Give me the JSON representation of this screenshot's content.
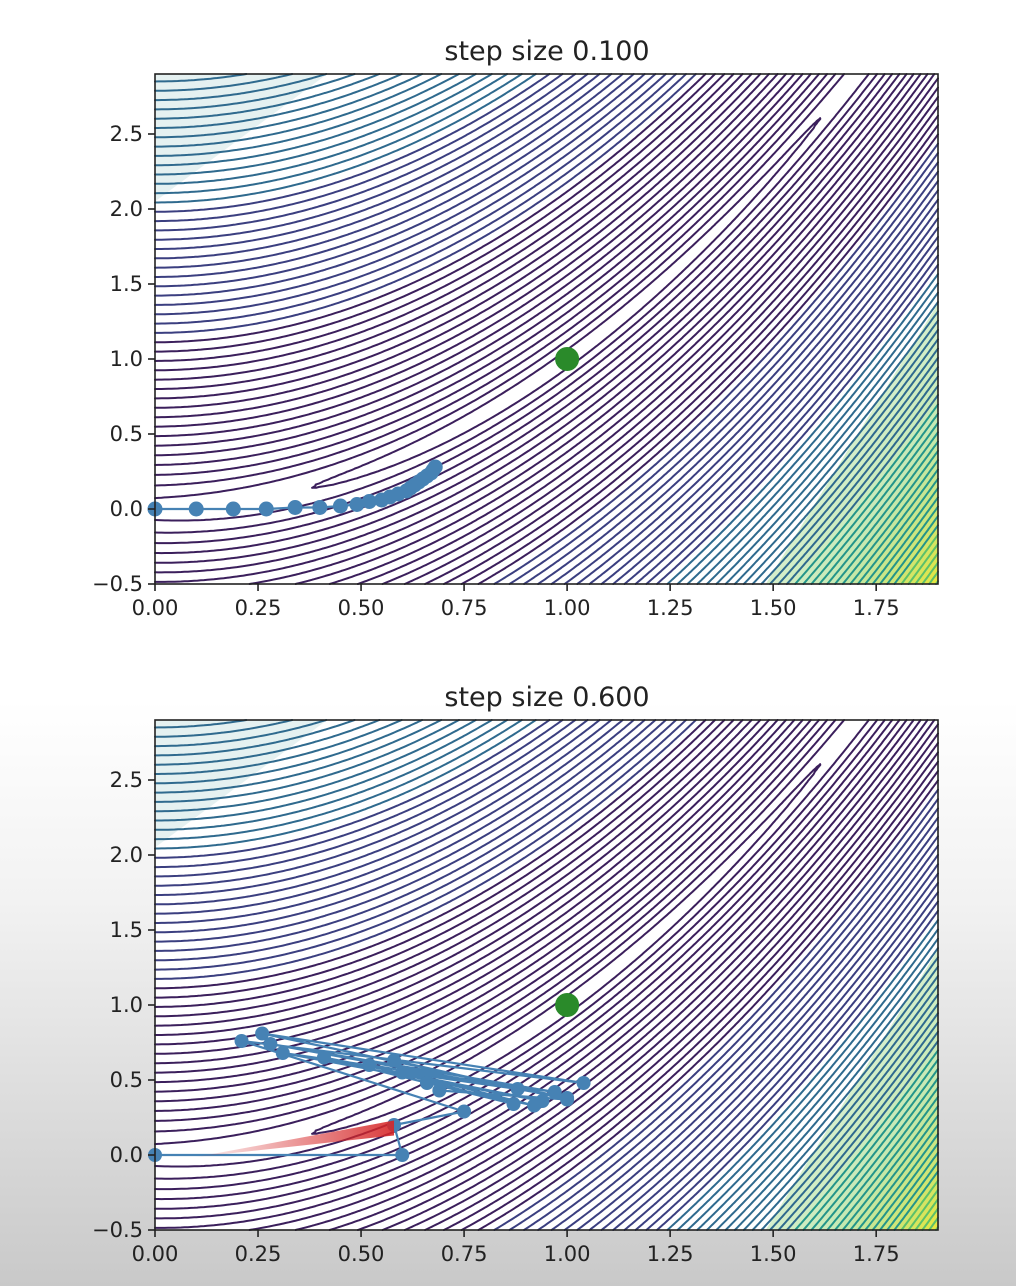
{
  "chart_data": [
    {
      "type": "line",
      "title": "step size 0.100",
      "xlabel": "",
      "ylabel": "",
      "xlim": [
        0.0,
        1.9
      ],
      "ylim": [
        -0.5,
        2.9
      ],
      "x_ticks": [
        "0.00",
        "0.25",
        "0.50",
        "0.75",
        "1.00",
        "1.25",
        "1.50",
        "1.75"
      ],
      "x_tick_values": [
        0.0,
        0.25,
        0.5,
        0.75,
        1.0,
        1.25,
        1.5,
        1.75
      ],
      "y_ticks": [
        "−0.5",
        "0.0",
        "0.5",
        "1.0",
        "1.5",
        "2.0",
        "2.5"
      ],
      "y_tick_values": [
        -0.5,
        0.0,
        0.5,
        1.0,
        1.5,
        2.0,
        2.5
      ],
      "background": "contour plot of Rosenbrock function (viridis colormap)",
      "minimum": {
        "x": 1.0,
        "y": 1.0,
        "color": "#2a8a2a"
      },
      "series": [
        {
          "color": "#4682b4",
          "points": [
            [
              0.0,
              0.0
            ],
            [
              0.1,
              0.0
            ],
            [
              0.19,
              0.0
            ],
            [
              0.27,
              0.0
            ],
            [
              0.34,
              0.01
            ],
            [
              0.4,
              0.01
            ],
            [
              0.45,
              0.02
            ],
            [
              0.49,
              0.03
            ],
            [
              0.52,
              0.05
            ],
            [
              0.55,
              0.06
            ],
            [
              0.57,
              0.08
            ],
            [
              0.59,
              0.1
            ],
            [
              0.61,
              0.12
            ],
            [
              0.62,
              0.14
            ],
            [
              0.63,
              0.16
            ],
            [
              0.64,
              0.18
            ],
            [
              0.65,
              0.2
            ],
            [
              0.66,
              0.22
            ],
            [
              0.67,
              0.24
            ],
            [
              0.675,
              0.26
            ],
            [
              0.68,
              0.28
            ]
          ]
        }
      ]
    },
    {
      "type": "line",
      "title": "step size 0.600",
      "xlabel": "",
      "ylabel": "",
      "xlim": [
        0.0,
        1.9
      ],
      "ylim": [
        -0.5,
        2.9
      ],
      "x_ticks": [
        "0.00",
        "0.25",
        "0.50",
        "0.75",
        "1.00",
        "1.25",
        "1.50",
        "1.75"
      ],
      "x_tick_values": [
        0.0,
        0.25,
        0.5,
        0.75,
        1.0,
        1.25,
        1.5,
        1.75
      ],
      "y_ticks": [
        "−0.5",
        "0.0",
        "0.5",
        "1.0",
        "1.5",
        "2.0",
        "2.5"
      ],
      "y_tick_values": [
        -0.5,
        0.0,
        0.5,
        1.0,
        1.5,
        2.0,
        2.5
      ],
      "background": "contour plot of Rosenbrock function (viridis colormap)",
      "minimum": {
        "x": 1.0,
        "y": 1.0,
        "color": "#2a8a2a"
      },
      "series": [
        {
          "color": "#4682b4",
          "points": [
            [
              0.0,
              0.0
            ],
            [
              0.6,
              0.0
            ],
            [
              0.58,
              0.2
            ],
            [
              0.75,
              0.29
            ],
            [
              0.21,
              0.76
            ],
            [
              1.04,
              0.48
            ],
            [
              0.26,
              0.81
            ],
            [
              1.0,
              0.38
            ],
            [
              0.28,
              0.74
            ],
            [
              0.97,
              0.42
            ],
            [
              0.31,
              0.68
            ],
            [
              0.94,
              0.36
            ],
            [
              0.41,
              0.65
            ],
            [
              0.87,
              0.34
            ],
            [
              0.52,
              0.6
            ],
            [
              0.88,
              0.44
            ],
            [
              0.6,
              0.55
            ],
            [
              0.92,
              0.33
            ],
            [
              0.66,
              0.48
            ],
            [
              0.58,
              0.63
            ],
            [
              1.0,
              0.37
            ],
            [
              0.69,
              0.43
            ]
          ]
        },
        {
          "color": "#d62728",
          "note": "",
          "points": [
            [
              0.1,
              0.0
            ],
            [
              0.58,
              0.17
            ]
          ]
        }
      ]
    }
  ]
}
